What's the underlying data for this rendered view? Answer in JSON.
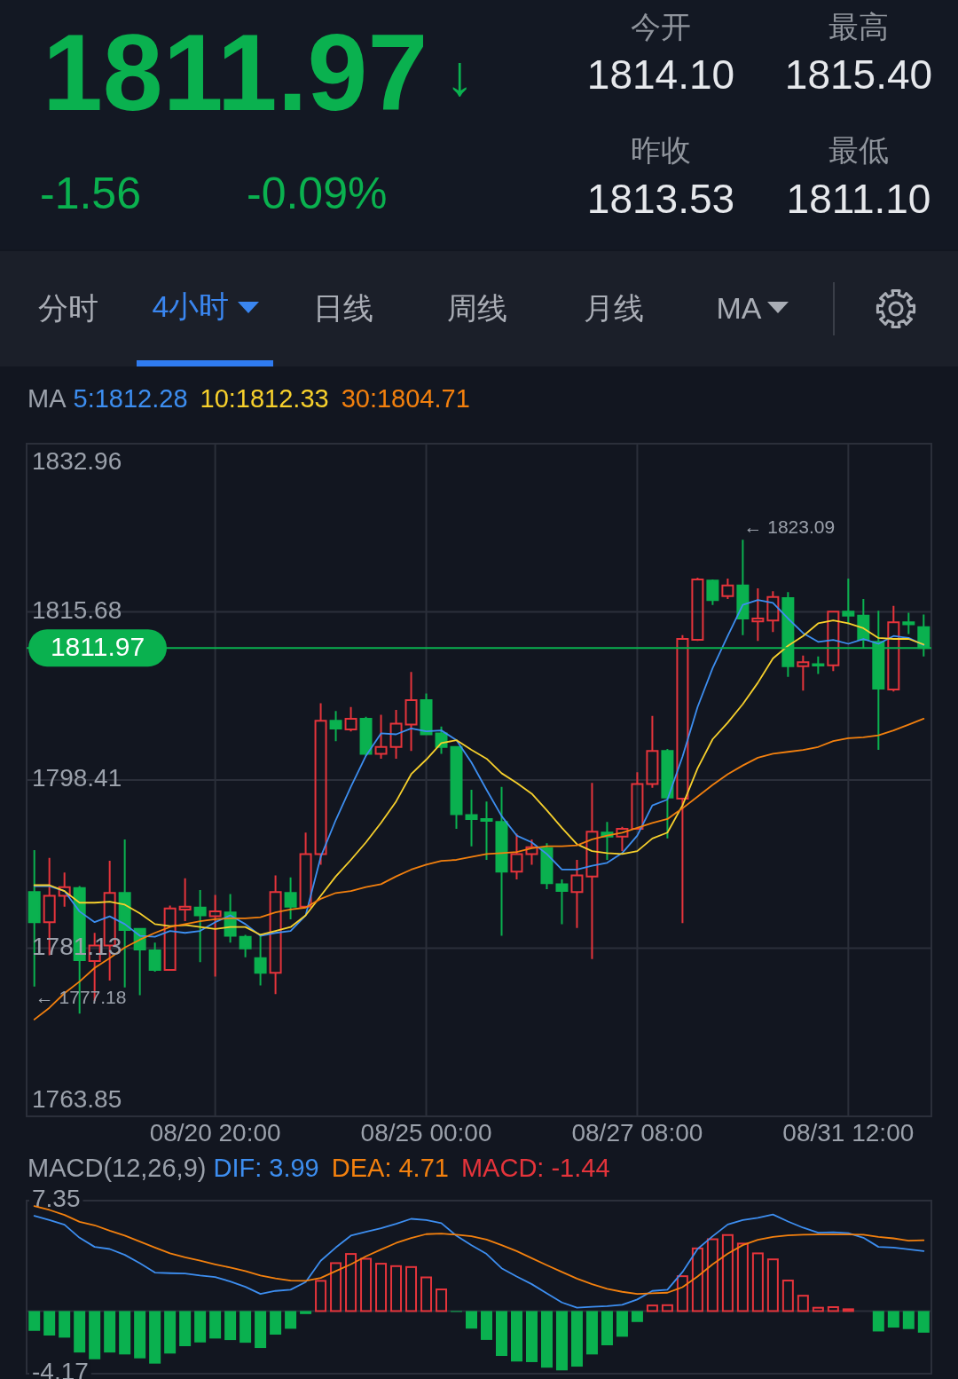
{
  "chart_data": [
    {
      "type": "other",
      "annotations": [
        "1811.97",
        "↓",
        "-1.56",
        "-0.09%",
        "今开",
        "1814.10",
        "最高",
        "1815.40",
        "昨收",
        "1813.53",
        "最低",
        "1811.10",
        "分时",
        "4小时",
        "日线",
        "周线",
        "月线",
        "MA"
      ]
    },
    {
      "type": "candlestick",
      "categories": [
        null,
        null,
        null,
        null,
        null,
        null,
        null,
        null,
        null,
        null,
        null,
        null,
        "08/20 20:00",
        null,
        null,
        null,
        null,
        null,
        null,
        null,
        null,
        null,
        null,
        null,
        null,
        null,
        "08/25 00:00",
        null,
        null,
        null,
        null,
        null,
        null,
        null,
        null,
        null,
        null,
        null,
        null,
        null,
        "08/27 08:00",
        null,
        null,
        null,
        null,
        null,
        null,
        null,
        null,
        null,
        null,
        null,
        null,
        null,
        "08/31 12:00",
        null,
        null,
        null,
        null,
        null
      ],
      "ohlc": [
        [
          1786.9,
          1791.2,
          1777.18,
          1783.8
        ],
        [
          1783.8,
          1790.4,
          1780.4,
          1786.5
        ],
        [
          1786.5,
          1788.9,
          1785.4,
          1787.4
        ],
        [
          1787.3,
          1787.5,
          1774.4,
          1779.9
        ],
        [
          1779.8,
          1782.7,
          1775.7,
          1781.4
        ],
        [
          1781.4,
          1790.1,
          1777.8,
          1786.8
        ],
        [
          1786.8,
          1792.3,
          1777.1,
          1783.0
        ],
        [
          1783.1,
          1783.1,
          1776.3,
          1781.0
        ],
        [
          1780.9,
          1781.7,
          1778.7,
          1778.9
        ],
        [
          1778.9,
          1785.5,
          1778.9,
          1785.2
        ],
        [
          1785.1,
          1788.3,
          1783.9,
          1785.4
        ],
        [
          1785.3,
          1787.1,
          1779.7,
          1784.5
        ],
        [
          1784.4,
          1786.6,
          1778.2,
          1784.9
        ],
        [
          1784.8,
          1786.7,
          1781.7,
          1782.4
        ],
        [
          1782.3,
          1782.5,
          1780.2,
          1781.1
        ],
        [
          1780.1,
          1782.6,
          1777.3,
          1778.6
        ],
        [
          1778.6,
          1788.6,
          1776.4,
          1786.9
        ],
        [
          1786.8,
          1788.4,
          1784.1,
          1785.4
        ],
        [
          1785.4,
          1793.0,
          1785.4,
          1790.8
        ],
        [
          1790.8,
          1806.3,
          1789.7,
          1804.5
        ],
        [
          1804.5,
          1805.5,
          1802.4,
          1803.7
        ],
        [
          1803.6,
          1805.9,
          1803.4,
          1804.7
        ],
        [
          1804.7,
          1804.9,
          1800.9,
          1801.1
        ],
        [
          1801.1,
          1805.1,
          1800.6,
          1801.8
        ],
        [
          1801.8,
          1805.6,
          1800.6,
          1804.2
        ],
        [
          1804.1,
          1809.5,
          1801.4,
          1806.6
        ],
        [
          1806.6,
          1807.3,
          1803.1,
          1803.1
        ],
        [
          1803.2,
          1803.9,
          1801.1,
          1801.8
        ],
        [
          1801.8,
          1801.8,
          1793.4,
          1794.9
        ],
        [
          1794.8,
          1797.4,
          1791.6,
          1794.4
        ],
        [
          1794.4,
          1796.2,
          1790.2,
          1794.2
        ],
        [
          1794.1,
          1797.7,
          1782.4,
          1789.0
        ],
        [
          1789.0,
          1792.9,
          1788.2,
          1790.8
        ],
        [
          1790.8,
          1792.3,
          1789.7,
          1791.5
        ],
        [
          1791.4,
          1791.9,
          1787.2,
          1787.8
        ],
        [
          1787.7,
          1788.2,
          1783.6,
          1787.0
        ],
        [
          1786.9,
          1790.2,
          1783.2,
          1788.6
        ],
        [
          1788.5,
          1798.1,
          1780.0,
          1793.1
        ],
        [
          1793.0,
          1794.1,
          1790.2,
          1792.6
        ],
        [
          1792.6,
          1793.6,
          1791.1,
          1793.4
        ],
        [
          1793.4,
          1799.2,
          1793.4,
          1798.0
        ],
        [
          1798.0,
          1805.0,
          1797.6,
          1801.4
        ],
        [
          1801.4,
          1801.6,
          1792.4,
          1796.6
        ],
        [
          1796.5,
          1813.3,
          1783.7,
          1812.9
        ],
        [
          1812.8,
          1819.2,
          1812.7,
          1819.0
        ],
        [
          1818.9,
          1819.0,
          1816.4,
          1816.9
        ],
        [
          1817.3,
          1819.1,
          1817.0,
          1818.4
        ],
        [
          1818.4,
          1823.09,
          1813.3,
          1815.0
        ],
        [
          1814.7,
          1818.1,
          1812.7,
          1815.0
        ],
        [
          1814.8,
          1817.8,
          1813.6,
          1817.2
        ],
        [
          1817.1,
          1817.7,
          1809.0,
          1810.1
        ],
        [
          1810.1,
          1811.2,
          1807.6,
          1810.5
        ],
        [
          1810.3,
          1811.1,
          1809.3,
          1810.2
        ],
        [
          1810.2,
          1815.7,
          1809.6,
          1815.7
        ],
        [
          1815.7,
          1819.1,
          1814.4,
          1815.3
        ],
        [
          1815.3,
          1817.0,
          1811.9,
          1812.8
        ],
        [
          1812.6,
          1815.8,
          1801.5,
          1807.8
        ],
        [
          1807.7,
          1816.3,
          1807.5,
          1814.6
        ],
        [
          1814.6,
          1815.6,
          1813.4,
          1814.4
        ],
        [
          1814.1,
          1815.4,
          1811.1,
          1811.97
        ]
      ],
      "colors": [
        "#0ab14f",
        "#e5343b",
        "#e5343b",
        "#0ab14f",
        "#e5343b",
        "#e5343b",
        "#0ab14f",
        "#0ab14f",
        "#0ab14f",
        "#e5343b",
        "#e5343b",
        "#0ab14f",
        "#e5343b",
        "#0ab14f",
        "#0ab14f",
        "#0ab14f",
        "#e5343b",
        "#0ab14f",
        "#e5343b",
        "#e5343b",
        "#0ab14f",
        "#e5343b",
        "#0ab14f",
        "#e5343b",
        "#e5343b",
        "#e5343b",
        "#0ab14f",
        "#0ab14f",
        "#0ab14f",
        "#0ab14f",
        "#0ab14f",
        "#0ab14f",
        "#e5343b",
        "#e5343b",
        "#0ab14f",
        "#0ab14f",
        "#e5343b",
        "#e5343b",
        "#0ab14f",
        "#e5343b",
        "#e5343b",
        "#e5343b",
        "#0ab14f",
        "#e5343b",
        "#e5343b",
        "#0ab14f",
        "#e5343b",
        "#0ab14f",
        "#e5343b",
        "#e5343b",
        "#0ab14f",
        "#e5343b",
        "#0ab14f",
        "#e5343b",
        "#0ab14f",
        "#0ab14f",
        "#0ab14f",
        "#e5343b",
        "#0ab14f",
        "#0ab14f"
      ],
      "series": [
        {
          "name": "5:1812.28",
          "type": "line",
          "color": "#3d8ef0",
          "values": [
            1787.5,
            1787.5,
            1787.0,
            1784.9,
            1783.8,
            1784.4,
            1783.6,
            1782.4,
            1782.3,
            1782.9,
            1782.7,
            1782.9,
            1783.8,
            1784.5,
            1783.6,
            1782.4,
            1782.7,
            1782.9,
            1784.5,
            1790.5,
            1794.3,
            1797.7,
            1800.9,
            1803.2,
            1803.1,
            1803.7,
            1803.4,
            1803.5,
            1802.5,
            1800.2,
            1797.4,
            1794.7,
            1792.7,
            1792.0,
            1790.8,
            1789.2,
            1789.2,
            1789.6,
            1789.9,
            1790.9,
            1792.7,
            1795.8,
            1796.4,
            1800.8,
            1805.9,
            1809.9,
            1813.2,
            1816.4,
            1816.9,
            1816.6,
            1815.0,
            1813.5,
            1812.6,
            1812.8,
            1812.4,
            1812.9,
            1812.4,
            1813.2,
            1813.0,
            1812.28
          ]
        },
        {
          "name": "10:1812.33",
          "type": "line",
          "color": "#f7d02c",
          "values": [
            1787.6,
            1787.6,
            1787.0,
            1785.8,
            1785.8,
            1785.9,
            1785.6,
            1784.7,
            1783.6,
            1783.4,
            1783.5,
            1783.3,
            1783.1,
            1783.3,
            1783.3,
            1782.5,
            1782.9,
            1783.3,
            1784.5,
            1786.5,
            1788.5,
            1790.2,
            1792.0,
            1794.0,
            1796.2,
            1799.0,
            1800.5,
            1802.2,
            1802.5,
            1801.5,
            1800.6,
            1799.1,
            1798.1,
            1797.0,
            1795.3,
            1793.5,
            1791.8,
            1791.1,
            1790.9,
            1790.8,
            1791.1,
            1792.4,
            1793.0,
            1795.8,
            1799.6,
            1802.6,
            1804.3,
            1806.2,
            1808.4,
            1810.9,
            1812.2,
            1813.2,
            1814.5,
            1814.8,
            1814.5,
            1814.0,
            1813.0,
            1812.9,
            1812.9,
            1812.33
          ]
        },
        {
          "name": "30:1804.71",
          "type": "line",
          "color": "#f3800e",
          "values": [
            1773.8,
            1775.0,
            1776.5,
            1777.7,
            1779.1,
            1780.1,
            1781.2,
            1782.0,
            1782.7,
            1783.3,
            1783.6,
            1783.9,
            1784.1,
            1784.2,
            1784.2,
            1784.3,
            1784.8,
            1785.1,
            1785.3,
            1786.2,
            1786.8,
            1787.0,
            1787.4,
            1787.7,
            1788.5,
            1789.2,
            1789.7,
            1790.1,
            1790.2,
            1790.5,
            1790.8,
            1790.9,
            1791.0,
            1791.4,
            1791.6,
            1791.6,
            1791.7,
            1792.3,
            1792.7,
            1793.0,
            1793.5,
            1794.0,
            1794.4,
            1795.5,
            1796.7,
            1797.9,
            1799.0,
            1799.9,
            1800.7,
            1801.1,
            1801.3,
            1801.5,
            1801.8,
            1802.4,
            1802.7,
            1802.8,
            1803.0,
            1803.5,
            1804.1,
            1804.71
          ]
        }
      ],
      "ylim": [
        1763.85,
        1832.96
      ],
      "yticks": [
        1763.85,
        1781.13,
        1798.41,
        1815.68,
        1832.96
      ],
      "grid": true,
      "legend": "top left",
      "legend_title": "MA",
      "ref_lines": [
        {
          "axis": "y",
          "value": 1811.97,
          "label": "1811.97",
          "color": "#0ab14f"
        }
      ],
      "annotations": [
        "← 1823.09",
        "← 1777.18"
      ]
    },
    {
      "type": "bar",
      "categories": [
        null,
        null,
        null,
        null,
        null,
        null,
        null,
        null,
        null,
        null,
        null,
        null,
        null,
        null,
        null,
        null,
        null,
        null,
        null,
        null,
        null,
        null,
        null,
        null,
        null,
        null,
        null,
        null,
        null,
        null,
        null,
        null,
        null,
        null,
        null,
        null,
        null,
        null,
        null,
        null,
        null,
        null,
        null,
        null,
        null,
        null,
        null,
        null,
        null,
        null,
        null,
        null,
        null,
        null,
        null,
        null,
        null,
        null,
        null,
        null
      ],
      "series": [
        {
          "name": "DIF: 3.99",
          "type": "line",
          "color": "#3d8ef0",
          "values": [
            6.34,
            6.06,
            5.75,
            4.88,
            4.27,
            4.13,
            3.74,
            3.19,
            2.56,
            2.52,
            2.5,
            2.36,
            2.26,
            1.97,
            1.61,
            1.14,
            1.34,
            1.42,
            1.93,
            3.35,
            4.23,
            5.02,
            5.28,
            5.51,
            5.81,
            6.14,
            6.06,
            5.85,
            5.02,
            4.38,
            3.8,
            2.85,
            2.3,
            1.79,
            1.18,
            0.57,
            0.22,
            0.28,
            0.33,
            0.41,
            0.77,
            1.34,
            1.42,
            2.6,
            4.13,
            4.98,
            5.76,
            6.06,
            6.2,
            6.43,
            5.96,
            5.55,
            5.21,
            5.25,
            5.19,
            4.88,
            4.27,
            4.23,
            4.11,
            3.99
          ]
        },
        {
          "name": "DEA: 4.71",
          "type": "line",
          "color": "#f3800e",
          "values": [
            6.99,
            6.73,
            6.4,
            5.94,
            5.71,
            5.35,
            5.02,
            4.63,
            4.23,
            3.84,
            3.58,
            3.35,
            3.11,
            2.89,
            2.66,
            2.36,
            2.17,
            2.03,
            2.01,
            2.2,
            2.66,
            3.11,
            3.64,
            4.09,
            4.53,
            4.86,
            5.12,
            5.16,
            5.08,
            4.98,
            4.76,
            4.39,
            3.99,
            3.52,
            3.05,
            2.6,
            2.16,
            1.79,
            1.48,
            1.28,
            1.14,
            1.18,
            1.22,
            1.59,
            2.3,
            3.11,
            3.82,
            4.39,
            4.74,
            4.94,
            5.04,
            5.08,
            5.1,
            5.1,
            5.1,
            5.08,
            4.94,
            4.84,
            4.68,
            4.71
          ]
        },
        {
          "name": "MACD: -1.44",
          "type": "bar",
          "color": "#e5343b",
          "colors": [
            "#0ab14f",
            "#0ab14f",
            "#0ab14f",
            "#0ab14f",
            "#0ab14f",
            "#0ab14f",
            "#0ab14f",
            "#0ab14f",
            "#0ab14f",
            "#0ab14f",
            "#0ab14f",
            "#0ab14f",
            "#0ab14f",
            "#0ab14f",
            "#0ab14f",
            "#0ab14f",
            "#0ab14f",
            "#0ab14f",
            "#0ab14f",
            "#e5343b",
            "#e5343b",
            "#e5343b",
            "#e5343b",
            "#e5343b",
            "#e5343b",
            "#e5343b",
            "#e5343b",
            "#e5343b",
            "#0ab14f",
            "#0ab14f",
            "#0ab14f",
            "#0ab14f",
            "#0ab14f",
            "#0ab14f",
            "#0ab14f",
            "#0ab14f",
            "#0ab14f",
            "#0ab14f",
            "#0ab14f",
            "#0ab14f",
            "#0ab14f",
            "#e5343b",
            "#e5343b",
            "#e5343b",
            "#e5343b",
            "#e5343b",
            "#e5343b",
            "#e5343b",
            "#e5343b",
            "#e5343b",
            "#e5343b",
            "#e5343b",
            "#e5343b",
            "#e5343b",
            "#e5343b",
            null,
            "#0ab14f",
            "#0ab14f",
            "#0ab14f",
            "#0ab14f"
          ],
          "values": [
            -1.32,
            -1.63,
            -1.77,
            -2.76,
            -3.21,
            -2.76,
            -2.89,
            -3.15,
            -3.5,
            -2.83,
            -2.34,
            -2.09,
            -1.83,
            -1.93,
            -2.11,
            -2.46,
            -1.57,
            -1.18,
            -0.2,
            2.01,
            3.19,
            3.8,
            3.48,
            3.15,
            2.99,
            2.93,
            2.24,
            1.44,
            -0.05,
            -1.17,
            -1.92,
            -2.99,
            -3.36,
            -3.4,
            -3.77,
            -3.95,
            -3.7,
            -2.89,
            -2.28,
            -1.71,
            -0.73,
            0.37,
            0.39,
            2.32,
            4.17,
            4.78,
            5.06,
            4.49,
            3.84,
            3.44,
            2.03,
            1.02,
            0.22,
            0.26,
            0.12,
            null,
            -1.36,
            -1.1,
            -1.2,
            -1.44
          ]
        }
      ],
      "ylim": [
        -4.17,
        7.35
      ],
      "yticks": [
        -4.17,
        7.35
      ],
      "legend": "top left",
      "legend_title": "MACD(12,26,9)",
      "tick_labels": "y"
    }
  ]
}
